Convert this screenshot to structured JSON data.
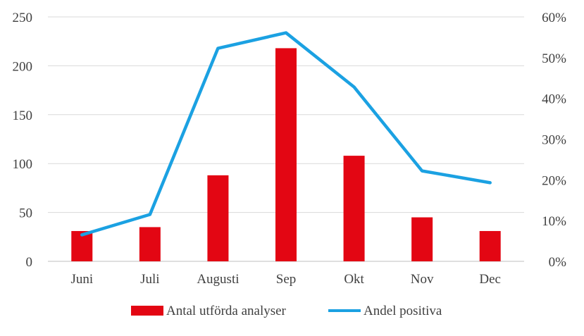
{
  "chart_data": {
    "type": "bar",
    "categories": [
      "Juni",
      "Juli",
      "Augusti",
      "Sep",
      "Okt",
      "Nov",
      "Dec"
    ],
    "series": [
      {
        "name": "Antal utförda analyser",
        "type": "bar",
        "axis": "left",
        "color": "#E30613",
        "values": [
          31,
          35,
          88,
          218,
          108,
          45,
          31
        ]
      },
      {
        "name": "Andel positiva",
        "type": "line",
        "axis": "right",
        "color": "#1BA1E2",
        "values": [
          0.065,
          0.115,
          0.523,
          0.561,
          0.428,
          0.222,
          0.193
        ]
      }
    ],
    "y_left": {
      "min": 0,
      "max": 250,
      "ticks": [
        "0",
        "50",
        "100",
        "150",
        "200",
        "250"
      ]
    },
    "y_right": {
      "min": 0,
      "max": 0.6,
      "ticks": [
        "0%",
        "10%",
        "20%",
        "30%",
        "40%",
        "50%",
        "60%"
      ]
    },
    "grid": true,
    "legend_position": "bottom",
    "title": "",
    "xlabel": "",
    "ylabel": ""
  }
}
